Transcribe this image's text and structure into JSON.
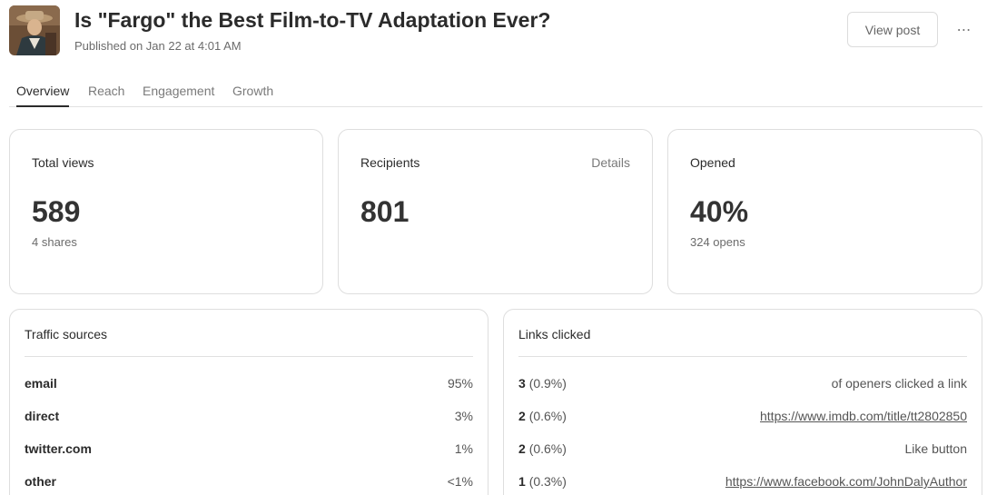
{
  "post": {
    "title": "Is \"Fargo\" the Best Film-to-TV Adaptation Ever?",
    "published": "Published on Jan 22 at 4:01 AM",
    "view_post_label": "View post",
    "more_label": "⋯"
  },
  "tabs": [
    {
      "label": "Overview",
      "active": true
    },
    {
      "label": "Reach",
      "active": false
    },
    {
      "label": "Engagement",
      "active": false
    },
    {
      "label": "Growth",
      "active": false
    }
  ],
  "stats": {
    "views": {
      "label": "Total views",
      "value": "589",
      "sub": "4 shares"
    },
    "recipients": {
      "label": "Recipients",
      "value": "801",
      "details": "Details"
    },
    "opened": {
      "label": "Opened",
      "value": "40%",
      "sub": "324 opens"
    }
  },
  "traffic": {
    "title": "Traffic sources",
    "rows": [
      {
        "name": "email",
        "pct": "95%"
      },
      {
        "name": "direct",
        "pct": "3%"
      },
      {
        "name": "twitter.com",
        "pct": "1%"
      },
      {
        "name": "other",
        "pct": "<1%"
      }
    ]
  },
  "links": {
    "title": "Links clicked",
    "rows": [
      {
        "count": "3",
        "pct": "(0.9%)",
        "target": "of openers clicked a link",
        "is_link": false
      },
      {
        "count": "2",
        "pct": "(0.6%)",
        "target": "https://www.imdb.com/title/tt2802850",
        "is_link": true
      },
      {
        "count": "2",
        "pct": "(0.6%)",
        "target": "Like button",
        "is_link": false
      },
      {
        "count": "1",
        "pct": "(0.3%)",
        "target": "https://www.facebook.com/JohnDalyAuthor",
        "is_link": true
      }
    ]
  }
}
